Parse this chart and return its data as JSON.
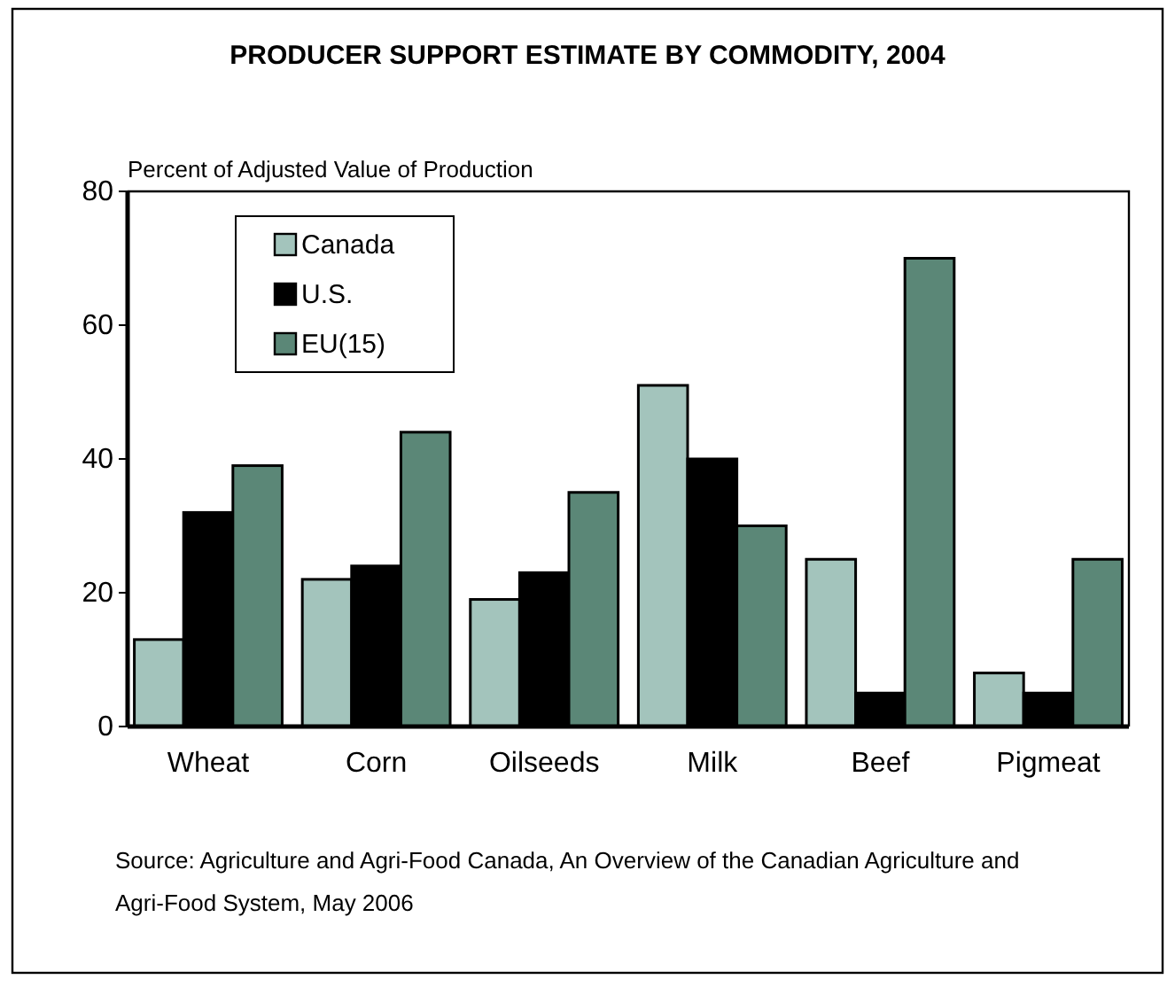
{
  "chart_data": {
    "type": "bar",
    "title": "PRODUCER SUPPORT ESTIMATE BY COMMODITY, 2004",
    "ylabel": "Percent of Adjusted Value of Production",
    "categories": [
      "Wheat",
      "Corn",
      "Oilseeds",
      "Milk",
      "Beef",
      "Pigmeat"
    ],
    "series": [
      {
        "name": "Canada",
        "color": "#a3c4bc",
        "values": [
          13,
          22,
          19,
          51,
          25,
          8
        ]
      },
      {
        "name": "U.S.",
        "color": "#000000",
        "values": [
          32,
          24,
          23,
          40,
          5,
          5
        ]
      },
      {
        "name": "EU(15)",
        "color": "#5b8777",
        "values": [
          39,
          44,
          35,
          30,
          70,
          25
        ]
      }
    ],
    "ylim": [
      0,
      80
    ],
    "yticks": [
      0,
      20,
      40,
      60,
      80
    ],
    "grid": false,
    "legend": "top left",
    "annotations": [
      "Source:  Agriculture and Agri-Food Canada, An Overview of the Canadian Agriculture and Agri-Food System, May 2006"
    ]
  }
}
